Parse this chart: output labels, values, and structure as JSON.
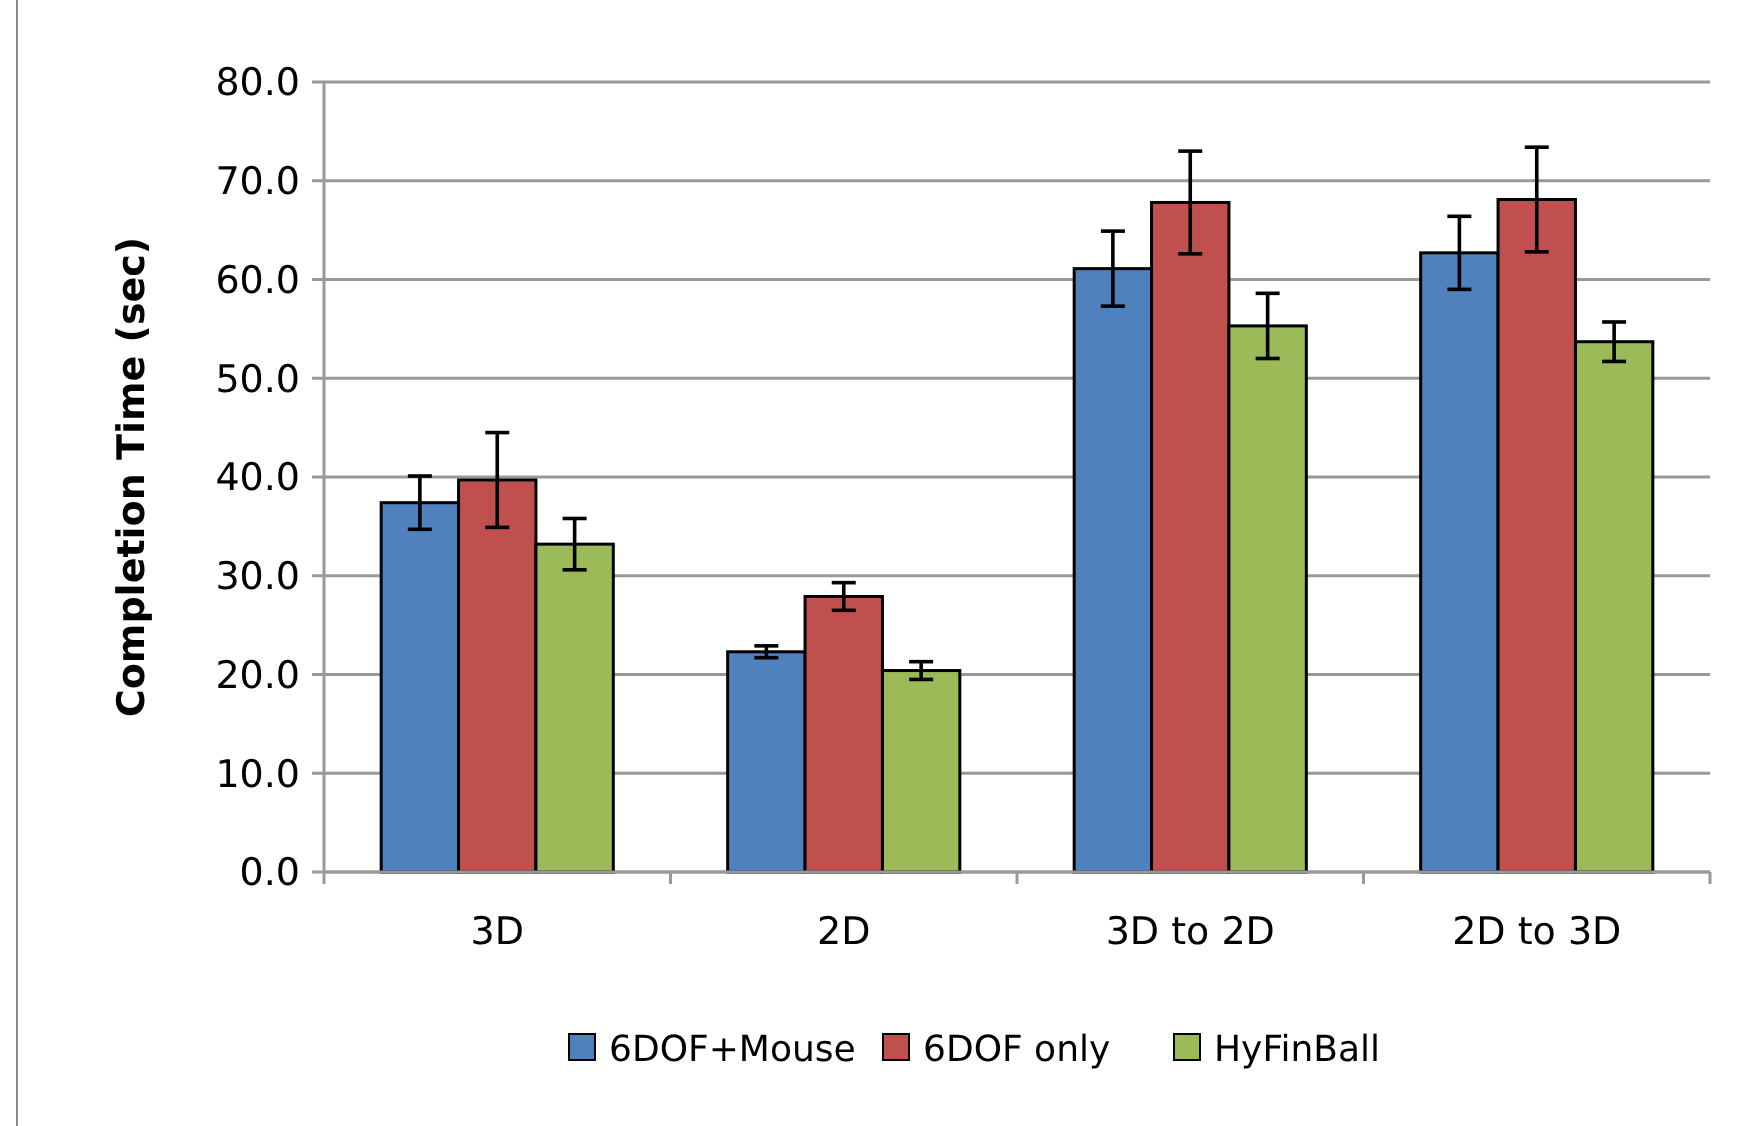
{
  "chart_data": {
    "type": "bar",
    "ylabel": "Completion Time (sec)",
    "categories": [
      "3D",
      "2D",
      "3D to 2D",
      "2D to 3D"
    ],
    "series": [
      {
        "name": "6DOF+Mouse",
        "color": "#4f81bd",
        "values": [
          37.4,
          22.3,
          61.1,
          62.7
        ],
        "errors": [
          2.7,
          0.6,
          3.8,
          3.7
        ]
      },
      {
        "name": "6DOF only",
        "color": "#c0504d",
        "values": [
          39.7,
          27.9,
          67.8,
          68.1
        ],
        "errors": [
          4.8,
          1.4,
          5.2,
          5.3
        ]
      },
      {
        "name": "HyFinBall",
        "color": "#9bbb59",
        "values": [
          33.2,
          20.4,
          55.3,
          53.7
        ],
        "errors": [
          2.6,
          0.9,
          3.3,
          2.0
        ]
      }
    ],
    "ylim": [
      0,
      80
    ],
    "yticks": [
      {
        "value": 0,
        "label": "0.0"
      },
      {
        "value": 10,
        "label": "10.0"
      },
      {
        "value": 20,
        "label": "20.0"
      },
      {
        "value": 30,
        "label": "30.0"
      },
      {
        "value": 40,
        "label": "40.0"
      },
      {
        "value": 50,
        "label": "50.0"
      },
      {
        "value": 60,
        "label": "60.0"
      },
      {
        "value": 70,
        "label": "70.0"
      },
      {
        "value": 80,
        "label": "80.0"
      }
    ],
    "grid": "y",
    "legend": "bottom"
  }
}
